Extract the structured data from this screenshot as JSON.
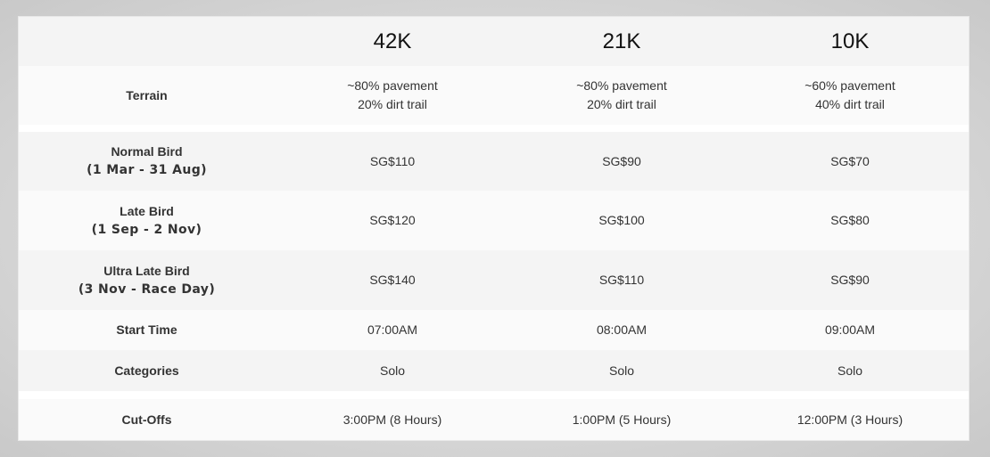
{
  "table": {
    "columns": [
      "42K",
      "21K",
      "10K"
    ],
    "rows": [
      {
        "label": "Terrain",
        "sublabel": "",
        "values": [
          [
            "~80% pavement",
            "20% dirt trail"
          ],
          [
            "~80% pavement",
            "20% dirt trail"
          ],
          [
            "~60% pavement",
            "40% dirt trail"
          ]
        ]
      },
      {
        "label": "Normal Bird",
        "sublabel": "(1 Mar - 31 Aug)",
        "values": [
          [
            "SG$110"
          ],
          [
            "SG$90"
          ],
          [
            "SG$70"
          ]
        ]
      },
      {
        "label": "Late Bird",
        "sublabel": "(1 Sep - 2 Nov)",
        "values": [
          [
            "SG$120"
          ],
          [
            "SG$100"
          ],
          [
            "SG$80"
          ]
        ]
      },
      {
        "label": "Ultra Late Bird",
        "sublabel": "(3 Nov - Race Day)",
        "values": [
          [
            "SG$140"
          ],
          [
            "SG$110"
          ],
          [
            "SG$90"
          ]
        ]
      },
      {
        "label": "Start Time",
        "sublabel": "",
        "values": [
          [
            "07:00AM"
          ],
          [
            "08:00AM"
          ],
          [
            "09:00AM"
          ]
        ]
      },
      {
        "label": "Categories",
        "sublabel": "",
        "values": [
          [
            "Solo"
          ],
          [
            "Solo"
          ],
          [
            "Solo"
          ]
        ]
      },
      {
        "label": "Cut-Offs",
        "sublabel": "",
        "values": [
          [
            "3:00PM (8 Hours)"
          ],
          [
            "1:00PM (5 Hours)"
          ],
          [
            "12:00PM (3 Hours)"
          ]
        ]
      }
    ]
  }
}
